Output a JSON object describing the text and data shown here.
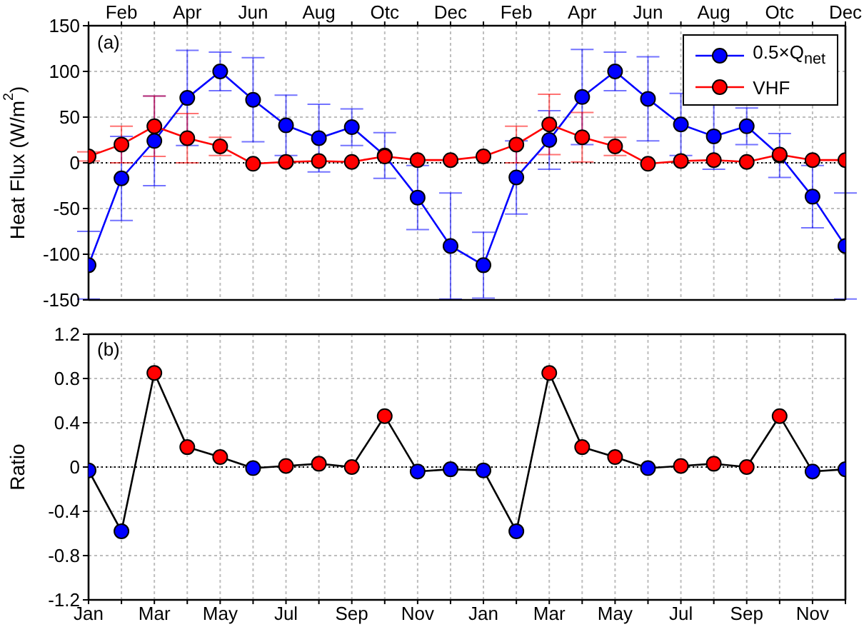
{
  "chart_data": [
    {
      "type": "line",
      "ylabel": "Heat Flux (W/m$^{2}$)",
      "annotations": [
        "(a)"
      ],
      "categories": [
        null,
        "Feb",
        null,
        "Apr",
        null,
        "Jun",
        null,
        "Aug",
        null,
        "Otc",
        null,
        "Dec",
        null,
        "Feb",
        null,
        "Apr",
        null,
        "Jun",
        null,
        "Aug",
        null,
        "Otc",
        null,
        "Dec"
      ],
      "series": [
        {
          "name": "0.5×Q$_{net}$",
          "color": "#0000ff",
          "values": [
            -112,
            -17,
            24,
            71,
            100,
            69,
            41,
            27,
            39,
            8,
            -38,
            -91,
            -112,
            -16,
            25,
            72,
            100,
            70,
            42,
            29,
            40,
            8,
            -37,
            -91
          ],
          "errors": [
            37,
            46,
            49,
            52,
            21,
            46,
            33,
            37,
            20,
            25,
            35,
            58,
            36,
            40,
            32,
            52,
            21,
            46,
            34,
            36,
            20,
            24,
            34,
            58
          ]
        },
        {
          "name": "VHF",
          "color": "#ff0000",
          "values": [
            7,
            20,
            40,
            27,
            18,
            -1,
            1,
            2,
            1,
            7,
            3,
            3,
            7,
            20,
            42,
            28,
            18,
            -1,
            2,
            3,
            1,
            9,
            3,
            3
          ],
          "errors": [
            5,
            20,
            33,
            27,
            10,
            null,
            null,
            null,
            null,
            null,
            null,
            null,
            null,
            20,
            33,
            27,
            10,
            null,
            null,
            null,
            null,
            null,
            null,
            null
          ]
        }
      ],
      "ylim": [
        -150,
        150
      ],
      "yticks": [
        -150,
        -100,
        -50,
        0,
        50,
        100,
        150
      ],
      "ref_lines": [
        {
          "axis": "y",
          "value": 0,
          "color": "#000000",
          "line_style": "dotted"
        }
      ],
      "grid": true,
      "legend": "top right",
      "marker": "circle",
      "line_style": "solid"
    },
    {
      "type": "line",
      "ylabel": "Ratio",
      "annotations": [
        "(b)"
      ],
      "categories": [
        "Jan",
        null,
        "Mar",
        null,
        "May",
        null,
        "Jul",
        null,
        "Sep",
        null,
        "Nov",
        null,
        "Jan",
        null,
        "Mar",
        null,
        "May",
        null,
        "Jul",
        null,
        "Sep",
        null,
        "Nov",
        null
      ],
      "series": [
        {
          "color": "#000000",
          "values": [
            -0.03,
            -0.58,
            0.85,
            0.18,
            0.09,
            -0.01,
            0.01,
            0.03,
            0.0,
            0.46,
            -0.04,
            -0.02,
            -0.03,
            -0.58,
            0.85,
            0.18,
            0.09,
            -0.01,
            0.01,
            0.03,
            0.0,
            0.46,
            -0.04,
            -0.02
          ],
          "colors": [
            "#0000ff",
            "#0000ff",
            "#ff0000",
            "#ff0000",
            "#ff0000",
            "#0000ff",
            "#ff0000",
            "#ff0000",
            "#ff0000",
            "#ff0000",
            "#0000ff",
            "#0000ff",
            "#0000ff",
            "#0000ff",
            "#ff0000",
            "#ff0000",
            "#ff0000",
            "#0000ff",
            "#ff0000",
            "#ff0000",
            "#ff0000",
            "#ff0000",
            "#0000ff",
            "#0000ff"
          ]
        }
      ],
      "ylim": [
        -1.2,
        1.2
      ],
      "yticks": [
        -1.2,
        -0.8,
        -0.4,
        0,
        0.4,
        0.8,
        1.2
      ],
      "ref_lines": [
        {
          "axis": "y",
          "value": 0,
          "color": "#000000",
          "line_style": "dotted"
        }
      ],
      "grid": true,
      "marker": "circle",
      "line_style": "solid"
    }
  ]
}
